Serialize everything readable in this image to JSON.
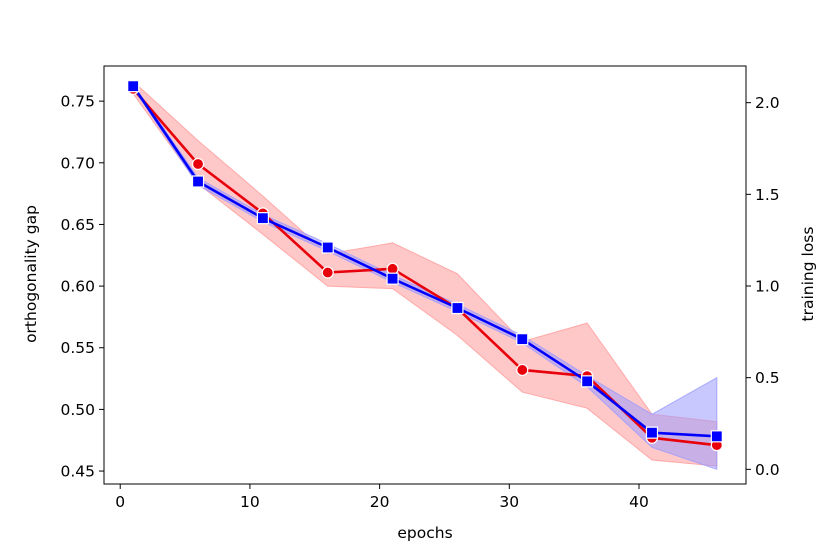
{
  "chart_data": {
    "type": "line",
    "title": "",
    "xlabel": "epochs",
    "ylabel_left": "orthogonality gap",
    "ylabel_right": "training loss",
    "xlim": [
      -1.25,
      48.25
    ],
    "ylim_left": [
      0.4395,
      0.7785
    ],
    "ylim_right": [
      -0.08,
      2.2
    ],
    "x_ticks": [
      0,
      10,
      20,
      30,
      40
    ],
    "y_ticks_left": [
      0.45,
      0.5,
      0.55,
      0.6,
      0.65,
      0.7,
      0.75
    ],
    "y_ticks_right": [
      0.0,
      0.5,
      1.0,
      1.5,
      2.0
    ],
    "x": [
      1,
      6,
      11,
      16,
      21,
      26,
      31,
      36,
      41,
      46
    ],
    "series": [
      {
        "name": "orthogonality gap",
        "axis": "left",
        "color": "#e8000b",
        "band_color": "#ff9a9a",
        "marker": "circle",
        "values": [
          0.76,
          0.699,
          0.659,
          0.611,
          0.614,
          0.582,
          0.532,
          0.527,
          0.477,
          0.471
        ],
        "lower": [
          0.756,
          0.683,
          0.642,
          0.6,
          0.598,
          0.56,
          0.514,
          0.501,
          0.459,
          0.454
        ],
        "upper": [
          0.766,
          0.718,
          0.673,
          0.626,
          0.635,
          0.61,
          0.555,
          0.57,
          0.496,
          0.49
        ]
      },
      {
        "name": "training loss",
        "axis": "right",
        "color": "#0000ff",
        "band_color": "#9a9aff",
        "marker": "square",
        "values": [
          2.09,
          1.57,
          1.37,
          1.21,
          1.04,
          0.88,
          0.71,
          0.48,
          0.2,
          0.18
        ],
        "lower": [
          2.08,
          1.55,
          1.35,
          1.19,
          1.02,
          0.86,
          0.69,
          0.45,
          0.12,
          0.0
        ],
        "upper": [
          2.1,
          1.59,
          1.39,
          1.23,
          1.06,
          0.9,
          0.73,
          0.51,
          0.3,
          0.5
        ]
      }
    ]
  }
}
